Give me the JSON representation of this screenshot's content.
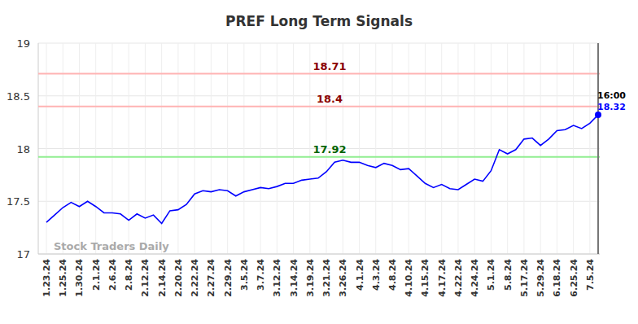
{
  "chart_data": {
    "type": "line",
    "title": "PREF Long Term Signals",
    "categories": [
      "1.23.24",
      null,
      "1.25.24",
      null,
      "1.30.24",
      null,
      "2.1.24",
      null,
      "2.6.24",
      null,
      "2.8.24",
      null,
      "2.12.24",
      null,
      "2.14.24",
      null,
      "2.20.24",
      null,
      "2.22.24",
      null,
      "2.27.24",
      null,
      "2.29.24",
      null,
      "3.5.24",
      null,
      "3.7.24",
      null,
      "3.12.24",
      null,
      "3.14.24",
      null,
      "3.19.24",
      null,
      "3.21.24",
      null,
      "3.26.24",
      null,
      "4.1.24",
      null,
      "4.3.24",
      null,
      "4.8.24",
      null,
      "4.10.24",
      null,
      "4.15.24",
      null,
      "4.17.24",
      null,
      "4.22.24",
      null,
      "4.24.24",
      null,
      "5.1.24",
      null,
      "5.8.24",
      null,
      "5.17.24",
      null,
      "5.29.24",
      null,
      "6.18.24",
      null,
      "6.25.24",
      null,
      "7.5.24",
      null
    ],
    "series": [
      {
        "name": "PREF",
        "color": "#0000ff",
        "values": [
          17.3,
          17.37,
          17.44,
          17.49,
          17.45,
          17.5,
          17.45,
          17.39,
          17.39,
          17.38,
          17.32,
          17.38,
          17.34,
          17.37,
          17.29,
          17.41,
          17.42,
          17.47,
          17.57,
          17.6,
          17.59,
          17.61,
          17.6,
          17.55,
          17.59,
          17.61,
          17.63,
          17.62,
          17.64,
          17.67,
          17.67,
          17.7,
          17.71,
          17.72,
          17.78,
          17.87,
          17.89,
          17.87,
          17.87,
          17.84,
          17.82,
          17.86,
          17.84,
          17.8,
          17.81,
          17.74,
          17.67,
          17.63,
          17.66,
          17.62,
          17.61,
          17.66,
          17.71,
          17.69,
          17.79,
          17.99,
          17.95,
          17.99,
          18.09,
          18.1,
          18.03,
          18.09,
          18.17,
          18.18,
          18.22,
          18.19,
          18.24,
          18.32
        ]
      }
    ],
    "ylim": [
      17,
      19
    ],
    "yticks": [
      17,
      17.5,
      18,
      18.5,
      19
    ],
    "grid": true,
    "reference_lines": [
      {
        "value": 18.71,
        "color": "#ffb3b3",
        "text_color": "#8b0000"
      },
      {
        "value": 18.4,
        "color": "#ffb3b3",
        "text_color": "#8b0000"
      },
      {
        "value": 17.92,
        "color": "#90ee90",
        "text_color": "#006400"
      }
    ],
    "annotations": [
      {
        "text": "16:00"
      }
    ],
    "watermark": "Stock Traders Daily"
  }
}
